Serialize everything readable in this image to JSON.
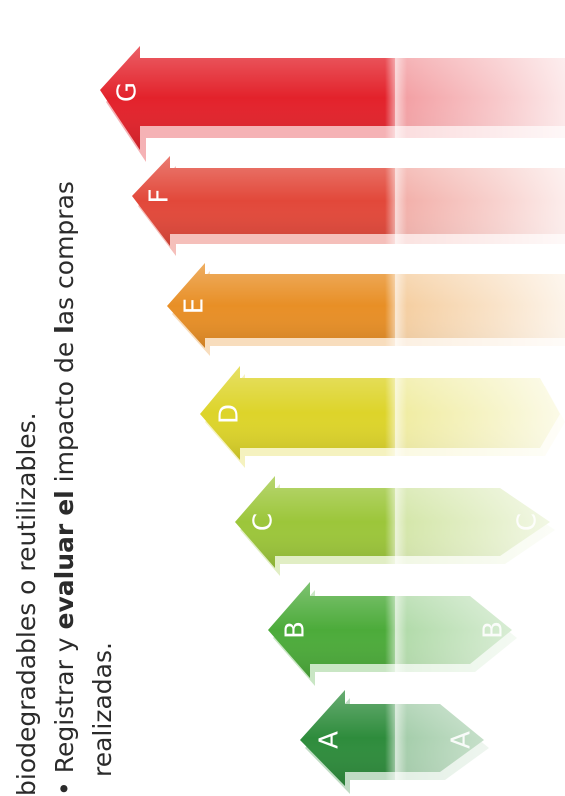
{
  "text": {
    "line1": "biodegradables o reutilizables.",
    "bullet": "•",
    "line2_parts": [
      "Registrar y ",
      "evaluar",
      " ",
      "el",
      " impacto de ",
      "l",
      "as compras"
    ],
    "line3": "realizadas."
  },
  "energy_scale": {
    "labels": [
      "G",
      "F",
      "E",
      "D",
      "C",
      "B",
      "A"
    ],
    "colors": [
      "#e3222b",
      "#e2483a",
      "#e88f26",
      "#ddd42a",
      "#9cc63a",
      "#4cab3a",
      "#2e8c3c"
    ]
  }
}
